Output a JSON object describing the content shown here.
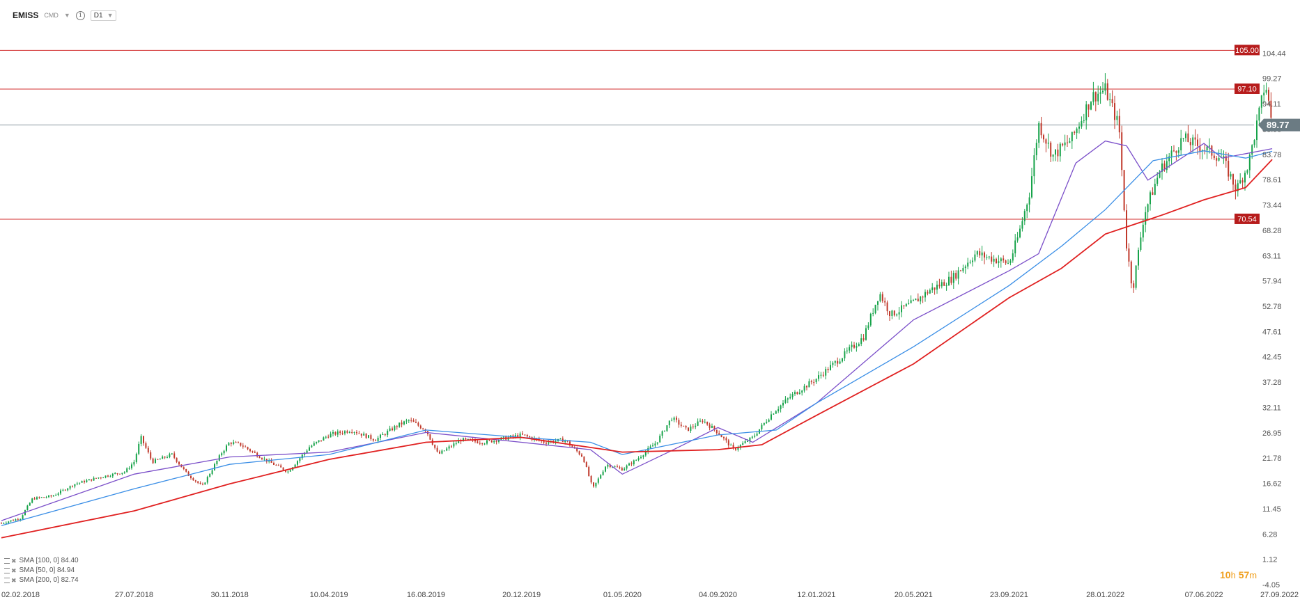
{
  "toolbar": {
    "symbol": "EMISS",
    "category": "CMD",
    "timeframe": "D1",
    "info_icon": "info-icon",
    "caret_icon": "caret-down-icon"
  },
  "legend": [
    {
      "label": "SMA [100, 0] 84.40",
      "color": "#3a8ee6",
      "icons": [
        "bars-icon",
        "close-icon"
      ]
    },
    {
      "label": "SMA [50, 0] 84.94",
      "color": "#7b4fc9",
      "icons": [
        "bars-icon",
        "close-icon"
      ]
    },
    {
      "label": "SMA [200, 0] 82.74",
      "color": "#e02020",
      "icons": [
        "bars-icon",
        "close-icon"
      ]
    }
  ],
  "timer": {
    "hours": "10",
    "h_unit": "h",
    "minutes": "57",
    "m_unit": "m"
  },
  "colors": {
    "up": "#17a34a",
    "down": "#c0392b",
    "sma50": "#7b4fc9",
    "sma100": "#3a8ee6",
    "sma200": "#e02020",
    "level_line": "#d32f2f",
    "level_badge": "#b71c1c",
    "price_badge": "#6b7b83"
  },
  "chart_data": {
    "type": "candlestick",
    "title": "",
    "xlabel": "",
    "ylabel": "",
    "ylim": [
      -4.05,
      109.6
    ],
    "y_ticks": [
      "104.44",
      "99.27",
      "94.11",
      "88.95",
      "83.78",
      "78.61",
      "73.44",
      "68.28",
      "63.11",
      "57.94",
      "52.78",
      "47.61",
      "42.45",
      "37.28",
      "32.11",
      "26.95",
      "21.78",
      "16.62",
      "11.45",
      "6.28",
      "1.12",
      "-4.05"
    ],
    "x_ticks": [
      "02.02.2018",
      "27.07.2018",
      "30.11.2018",
      "10.04.2019",
      "16.08.2019",
      "20.12.2019",
      "01.05.2020",
      "04.09.2020",
      "12.01.2021",
      "20.05.2021",
      "23.09.2021",
      "28.01.2022",
      "07.06.2022",
      "27.09.2022"
    ],
    "last_price": 89.77,
    "levels": [
      {
        "label": "105.00",
        "value": 105.0
      },
      {
        "label": "97.10",
        "value": 97.1
      },
      {
        "label": "70.54",
        "value": 70.54
      }
    ],
    "price_series": [
      [
        "02.02.2018",
        8.5
      ],
      [
        "27.02.2018",
        9.5
      ],
      [
        "15.03.2018",
        13.5
      ],
      [
        "10.04.2018",
        14.0
      ],
      [
        "10.05.2018",
        16.5
      ],
      [
        "10.06.2018",
        17.8
      ],
      [
        "15.07.2018",
        19.0
      ],
      [
        "27.07.2018",
        21.0
      ],
      [
        "05.08.2018",
        26.0
      ],
      [
        "20.08.2018",
        21.0
      ],
      [
        "15.09.2018",
        22.5
      ],
      [
        "05.10.2018",
        18.5
      ],
      [
        "25.10.2018",
        16.0
      ],
      [
        "20.11.2018",
        23.0
      ],
      [
        "30.11.2018",
        25.0
      ],
      [
        "15.12.2018",
        24.5
      ],
      [
        "15.01.2019",
        21.5
      ],
      [
        "15.02.2019",
        19.0
      ],
      [
        "15.03.2019",
        24.0
      ],
      [
        "10.04.2019",
        26.5
      ],
      [
        "10.05.2019",
        27.5
      ],
      [
        "10.06.2019",
        25.5
      ],
      [
        "10.07.2019",
        28.5
      ],
      [
        "25.07.2019",
        29.5
      ],
      [
        "16.08.2019",
        27.5
      ],
      [
        "01.09.2019",
        22.5
      ],
      [
        "01.10.2019",
        25.5
      ],
      [
        "01.11.2019",
        25.0
      ],
      [
        "20.12.2019",
        26.5
      ],
      [
        "20.01.2020",
        25.0
      ],
      [
        "15.02.2020",
        25.5
      ],
      [
        "10.03.2020",
        22.0
      ],
      [
        "23.03.2020",
        15.5
      ],
      [
        "10.04.2020",
        20.5
      ],
      [
        "01.05.2020",
        19.5
      ],
      [
        "20.05.2020",
        21.5
      ],
      [
        "15.06.2020",
        25.0
      ],
      [
        "05.07.2020",
        30.0
      ],
      [
        "25.07.2020",
        27.5
      ],
      [
        "15.08.2020",
        29.5
      ],
      [
        "04.09.2020",
        27.0
      ],
      [
        "25.09.2020",
        23.5
      ],
      [
        "20.10.2020",
        26.0
      ],
      [
        "15.11.2020",
        31.0
      ],
      [
        "10.12.2020",
        34.5
      ],
      [
        "12.01.2021",
        38.0
      ],
      [
        "15.02.2021",
        42.5
      ],
      [
        "15.03.2021",
        46.5
      ],
      [
        "05.04.2021",
        55.5
      ],
      [
        "20.04.2021",
        51.0
      ],
      [
        "20.05.2021",
        53.5
      ],
      [
        "10.06.2021",
        56.0
      ],
      [
        "10.07.2021",
        58.5
      ],
      [
        "10.08.2021",
        63.5
      ],
      [
        "01.09.2021",
        62.5
      ],
      [
        "23.09.2021",
        61.5
      ],
      [
        "05.10.2021",
        67.0
      ],
      [
        "20.10.2021",
        76.0
      ],
      [
        "01.11.2021",
        90.0
      ],
      [
        "20.11.2021",
        83.5
      ],
      [
        "15.12.2021",
        87.0
      ],
      [
        "10.01.2022",
        95.5
      ],
      [
        "28.01.2022",
        97.0
      ],
      [
        "15.02.2022",
        89.5
      ],
      [
        "25.02.2022",
        65.0
      ],
      [
        "05.03.2022",
        56.0
      ],
      [
        "20.03.2022",
        71.5
      ],
      [
        "10.04.2022",
        80.5
      ],
      [
        "10.05.2022",
        87.0
      ],
      [
        "07.06.2022",
        85.0
      ],
      [
        "01.07.2022",
        83.0
      ],
      [
        "20.07.2022",
        76.5
      ],
      [
        "05.08.2022",
        82.0
      ],
      [
        "20.08.2022",
        93.0
      ],
      [
        "27.08.2022",
        98.5
      ],
      [
        "05.09.2022",
        89.77
      ]
    ],
    "series": [
      {
        "name": "SMA [50, 0] 84.94",
        "points": [
          [
            "02.02.2018",
            9.0
          ],
          [
            "27.07.2018",
            18.5
          ],
          [
            "30.11.2018",
            22.0
          ],
          [
            "10.04.2019",
            23.0
          ],
          [
            "16.08.2019",
            27.0
          ],
          [
            "20.12.2019",
            25.0
          ],
          [
            "20.03.2020",
            23.5
          ],
          [
            "01.05.2020",
            18.5
          ],
          [
            "01.07.2020",
            23.0
          ],
          [
            "04.09.2020",
            28.0
          ],
          [
            "20.10.2020",
            25.0
          ],
          [
            "12.01.2021",
            33.0
          ],
          [
            "20.05.2021",
            50.0
          ],
          [
            "23.09.2021",
            60.0
          ],
          [
            "01.11.2021",
            63.5
          ],
          [
            "20.12.2021",
            82.0
          ],
          [
            "28.01.2022",
            86.5
          ],
          [
            "25.02.2022",
            85.5
          ],
          [
            "25.03.2022",
            78.5
          ],
          [
            "07.06.2022",
            86.0
          ],
          [
            "01.07.2022",
            83.0
          ],
          [
            "05.09.2022",
            84.94
          ]
        ]
      },
      {
        "name": "SMA [100, 0] 84.40",
        "points": [
          [
            "02.02.2018",
            8.0
          ],
          [
            "27.07.2018",
            15.5
          ],
          [
            "30.11.2018",
            20.5
          ],
          [
            "10.04.2019",
            22.5
          ],
          [
            "16.08.2019",
            27.5
          ],
          [
            "20.12.2019",
            26.0
          ],
          [
            "20.03.2020",
            25.0
          ],
          [
            "01.05.2020",
            22.5
          ],
          [
            "04.09.2020",
            26.5
          ],
          [
            "20.11.2020",
            27.5
          ],
          [
            "12.01.2021",
            33.0
          ],
          [
            "20.05.2021",
            44.5
          ],
          [
            "23.09.2021",
            57.0
          ],
          [
            "01.12.2021",
            65.0
          ],
          [
            "28.01.2022",
            72.5
          ],
          [
            "01.04.2022",
            82.5
          ],
          [
            "07.06.2022",
            84.5
          ],
          [
            "01.08.2022",
            83.0
          ],
          [
            "05.09.2022",
            84.4
          ]
        ]
      },
      {
        "name": "SMA [200, 0] 82.74",
        "points": [
          [
            "02.02.2018",
            5.5
          ],
          [
            "27.07.2018",
            11.0
          ],
          [
            "30.11.2018",
            16.5
          ],
          [
            "10.04.2019",
            21.5
          ],
          [
            "16.08.2019",
            25.0
          ],
          [
            "20.12.2019",
            26.0
          ],
          [
            "01.05.2020",
            23.0
          ],
          [
            "04.09.2020",
            23.5
          ],
          [
            "01.11.2020",
            24.5
          ],
          [
            "12.01.2021",
            30.5
          ],
          [
            "20.05.2021",
            41.0
          ],
          [
            "23.09.2021",
            54.5
          ],
          [
            "01.12.2021",
            60.5
          ],
          [
            "28.01.2022",
            67.5
          ],
          [
            "15.04.2022",
            71.5
          ],
          [
            "07.06.2022",
            74.5
          ],
          [
            "01.08.2022",
            77.0
          ],
          [
            "05.09.2022",
            82.74
          ]
        ]
      }
    ]
  }
}
